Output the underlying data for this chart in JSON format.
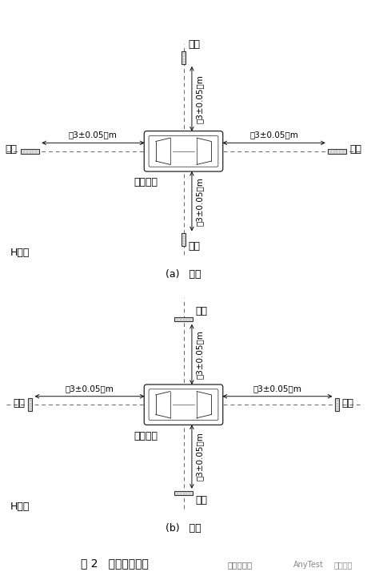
{
  "title": "图 2   磁场天线位置",
  "subtitle_a": "(a)   横向",
  "subtitle_b": "(b)   径向",
  "label_horizontal": "H横向",
  "label_radial": "H径向",
  "label_antenna": "天线",
  "label_vehicle": "被测车辆",
  "label_distance": "（3±0.05）m",
  "bg_color": "#ffffff",
  "font_size_label": 9,
  "font_size_title": 10,
  "font_size_sub": 9,
  "watermark1": "嘉峪检测网",
  "watermark2": "AnyTest",
  "watermark3": "电动学堂"
}
